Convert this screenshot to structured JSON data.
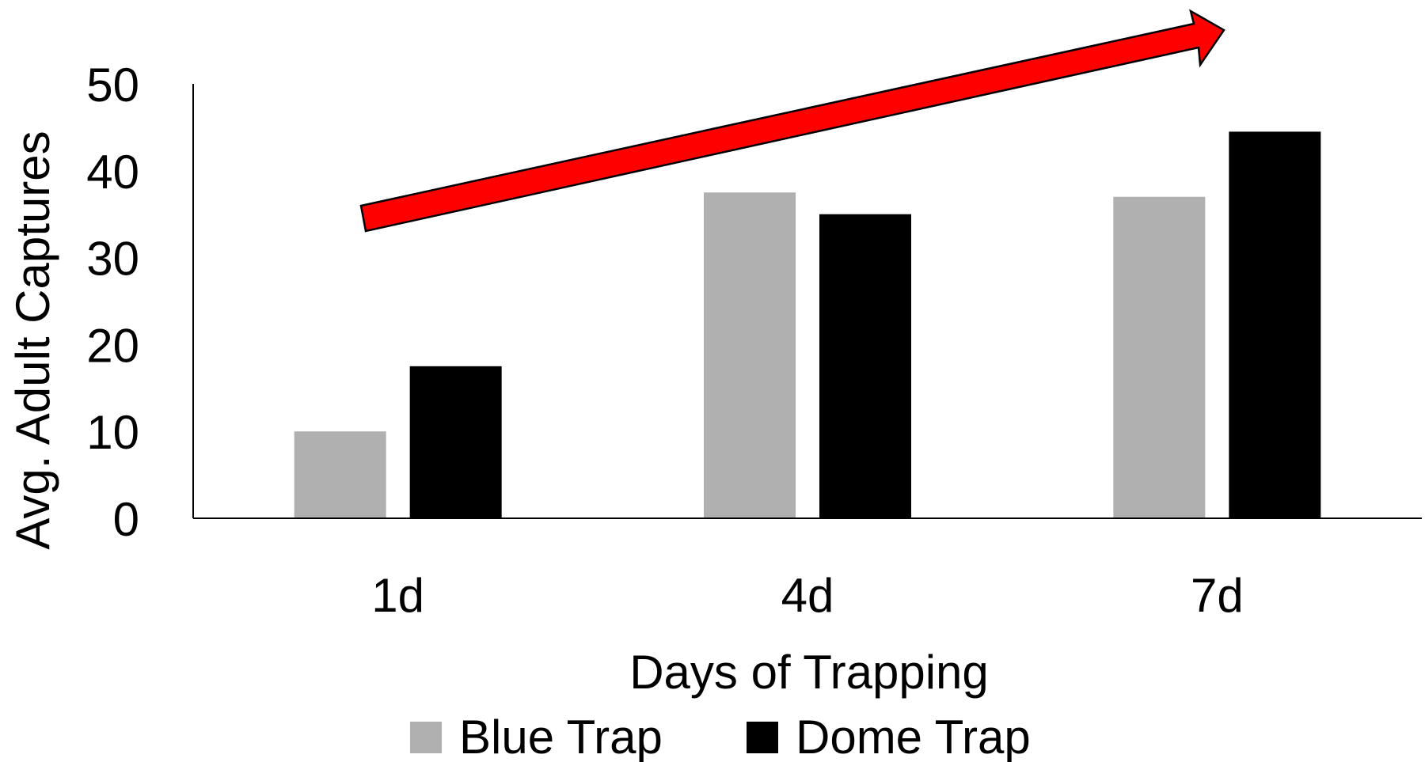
{
  "chart_data": {
    "type": "bar",
    "categories": [
      "1d",
      "4d",
      "7d"
    ],
    "series": [
      {
        "name": "Blue Trap",
        "values": [
          10,
          37.5,
          37
        ],
        "color": "#b0b0b0"
      },
      {
        "name": "Dome Trap",
        "values": [
          17.5,
          35,
          44.5
        ],
        "color": "#000000"
      }
    ],
    "xlabel": "Days of Trapping",
    "ylabel": "Avg. Adult Captures",
    "ylim": [
      0,
      50
    ],
    "yticks": [
      0,
      10,
      20,
      30,
      40,
      50
    ],
    "grid": false,
    "legend": "bottom-center",
    "annotation": {
      "type": "arrow",
      "direction": "increasing",
      "color": "#ff0000"
    }
  }
}
